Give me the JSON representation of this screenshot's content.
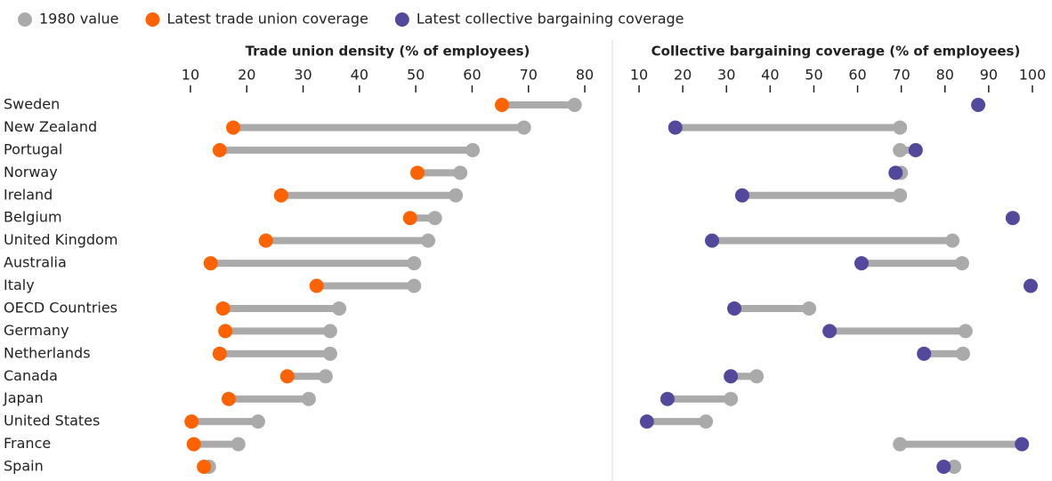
{
  "chart_data": [
    {
      "type": "dumbbell",
      "title": "Trade union density (% of employees)",
      "categories": [
        "Sweden",
        "New Zealand",
        "Portugal",
        "Norway",
        "Ireland",
        "Belgium",
        "United Kingdom",
        "Australia",
        "Italy",
        "OECD Countries",
        "Germany",
        "Netherlands",
        "Canada",
        "Japan",
        "United States",
        "France",
        "Spain"
      ],
      "series": [
        {
          "name": "1980 value",
          "color": "#aaaaaa",
          "values": [
            78.2,
            69.2,
            60.1,
            57.9,
            57.1,
            53.4,
            52.2,
            49.7,
            49.7,
            36.4,
            34.8,
            34.8,
            34.0,
            31.0,
            22.0,
            18.5,
            13.3
          ]
        },
        {
          "name": "Latest trade union coverage",
          "color": "#ff6200",
          "values": [
            65.3,
            17.6,
            15.2,
            50.3,
            26.1,
            49.0,
            23.4,
            13.6,
            32.4,
            15.8,
            16.2,
            15.2,
            27.2,
            16.8,
            10.2,
            10.6,
            12.4
          ]
        }
      ],
      "xlim": [
        8,
        82
      ],
      "xticks": [
        10,
        20,
        30,
        40,
        50,
        60,
        70,
        80
      ]
    },
    {
      "type": "dumbbell",
      "title": "Collective bargaining coverage (% of employees)",
      "series": [
        {
          "color": "#aaaaaa",
          "values": [
            null,
            69.7,
            69.7,
            69.9,
            69.7,
            null,
            81.7,
            83.9,
            null,
            48.9,
            84.7,
            84.1,
            36.9,
            31.0,
            25.3,
            69.7,
            82.1
          ]
        },
        {
          "name": "Latest collective bargaining coverage",
          "color": "#52489c",
          "values": [
            87.6,
            18.3,
            73.3,
            68.7,
            33.6,
            95.5,
            26.7,
            60.9,
            99.6,
            31.8,
            53.6,
            75.2,
            31.0,
            16.5,
            11.8,
            97.6,
            79.7
          ]
        }
      ],
      "xlim": [
        8,
        102
      ],
      "xticks": [
        10,
        20,
        30,
        40,
        50,
        60,
        70,
        80,
        90,
        100
      ]
    }
  ]
}
